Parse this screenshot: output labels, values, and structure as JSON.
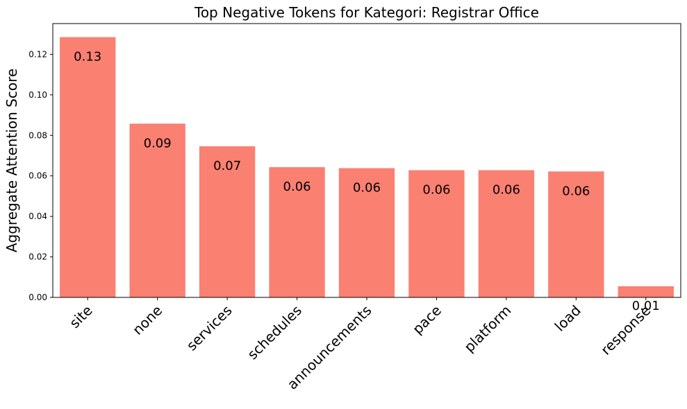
{
  "chart_data": {
    "type": "bar",
    "title": "Top Negative Tokens for Kategori: Registrar Office",
    "xlabel": "",
    "ylabel": "Aggregate Attention Score",
    "categories": [
      "site",
      "none",
      "services",
      "schedules",
      "announcements",
      "pace",
      "platform",
      "load",
      "response"
    ],
    "values": [
      0.1285,
      0.0858,
      0.0746,
      0.0643,
      0.0638,
      0.0628,
      0.0628,
      0.0622,
      0.0055
    ],
    "data_labels": [
      "0.13",
      "0.09",
      "0.07",
      "0.06",
      "0.06",
      "0.06",
      "0.06",
      "0.06",
      "0.01"
    ],
    "ylim": [
      0,
      0.1352
    ],
    "yticks": [
      0.0,
      0.02,
      0.04,
      0.06,
      0.08,
      0.1,
      0.12
    ],
    "ytick_labels": [
      "0.00",
      "0.02",
      "0.04",
      "0.06",
      "0.08",
      "0.10",
      "0.12"
    ],
    "bar_color": "#fa8072",
    "grid": false,
    "legend": false
  }
}
